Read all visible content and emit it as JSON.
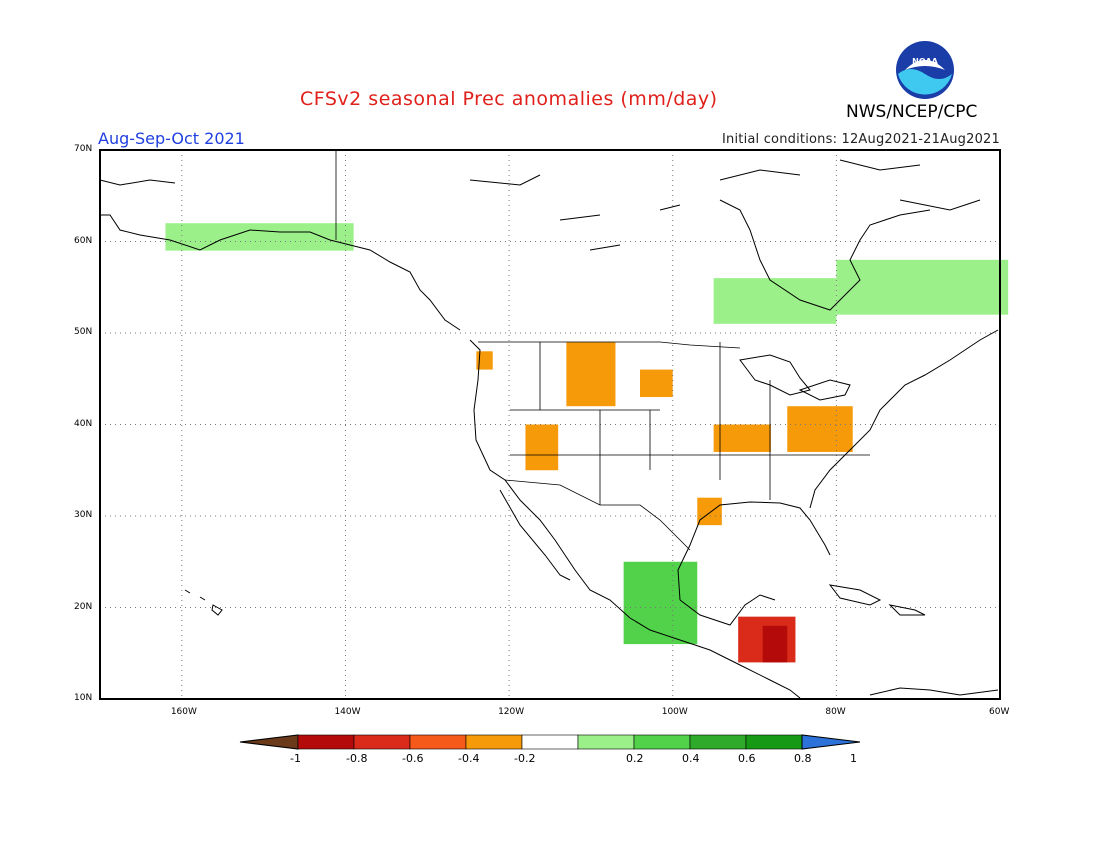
{
  "header": {
    "title": "CFSv2 seasonal Prec anomalies (mm/day)",
    "period": "Aug-Sep-Oct 2021",
    "initial_conditions": "Initial conditions: 12Aug2021-21Aug2021",
    "agency": "NWS/NCEP/CPC",
    "logo_text": "NOAA"
  },
  "map": {
    "lat_range": [
      10,
      70
    ],
    "lon_range": [
      -170,
      -60
    ],
    "lat_labels": [
      "70N",
      "60N",
      "50N",
      "40N",
      "30N",
      "20N",
      "10N"
    ],
    "lon_labels": [
      "160W",
      "140W",
      "120W",
      "100W",
      "80W",
      "60W"
    ],
    "grid": "dotted"
  },
  "colorbar": {
    "labels": [
      "-1",
      "-0.8",
      "-0.6",
      "-0.4",
      "-0.2",
      "0.2",
      "0.4",
      "0.6",
      "0.8",
      "1"
    ],
    "colors": [
      "#6b3a1a",
      "#b40a0a",
      "#d92a1a",
      "#f55a1a",
      "#f79a0a",
      "#ffffff",
      "#9cf08a",
      "#52d24a",
      "#2faa2a",
      "#169a16",
      "#2d72d8"
    ]
  },
  "anomaly_regions": [
    {
      "name": "Washington-Oregon-Idaho dry",
      "lat": [
        46,
        47
      ],
      "lon": [
        -124,
        -123
      ],
      "color": "#f79a0a"
    },
    {
      "name": "Montana-Wyoming dry",
      "lat": [
        42,
        48
      ],
      "lon": [
        -113,
        -108
      ],
      "color": "#f79a0a"
    },
    {
      "name": "Dakota dry",
      "lat": [
        43,
        45
      ],
      "lon": [
        -104,
        -101
      ],
      "color": "#f79a0a"
    },
    {
      "name": "Southwest dry",
      "lat": [
        35,
        39
      ],
      "lon": [
        -118,
        -115
      ],
      "color": "#f79a0a"
    },
    {
      "name": "Midwest dry",
      "lat": [
        37,
        39
      ],
      "lon": [
        -95,
        -89
      ],
      "color": "#f79a0a"
    },
    {
      "name": "Ohio Valley dry",
      "lat": [
        37,
        41
      ],
      "lon": [
        -86,
        -79
      ],
      "color": "#f79a0a"
    },
    {
      "name": "Texas coast dry",
      "lat": [
        29,
        31
      ],
      "lon": [
        -97,
        -95
      ],
      "color": "#f79a0a"
    },
    {
      "name": "Central America very dry",
      "lat": [
        14,
        18
      ],
      "lon": [
        -92,
        -86
      ],
      "color": "#d92a1a"
    },
    {
      "name": "Central America extreme dry",
      "lat": [
        14,
        17
      ],
      "lon": [
        -89,
        -87
      ],
      "color": "#b40a0a"
    },
    {
      "name": "Alaska coast wet",
      "lat": [
        59,
        61
      ],
      "lon": [
        -162,
        -140
      ],
      "color": "#9cf08a"
    },
    {
      "name": "Hudson Bay wet",
      "lat": [
        51,
        55
      ],
      "lon": [
        -95,
        -81
      ],
      "color": "#9cf08a"
    },
    {
      "name": "Quebec wet",
      "lat": [
        52,
        57
      ],
      "lon": [
        -80,
        -60
      ],
      "color": "#9cf08a"
    },
    {
      "name": "Mexico Pacific wet",
      "lat": [
        16,
        24
      ],
      "lon": [
        -106,
        -98
      ],
      "color": "#52d24a"
    }
  ]
}
